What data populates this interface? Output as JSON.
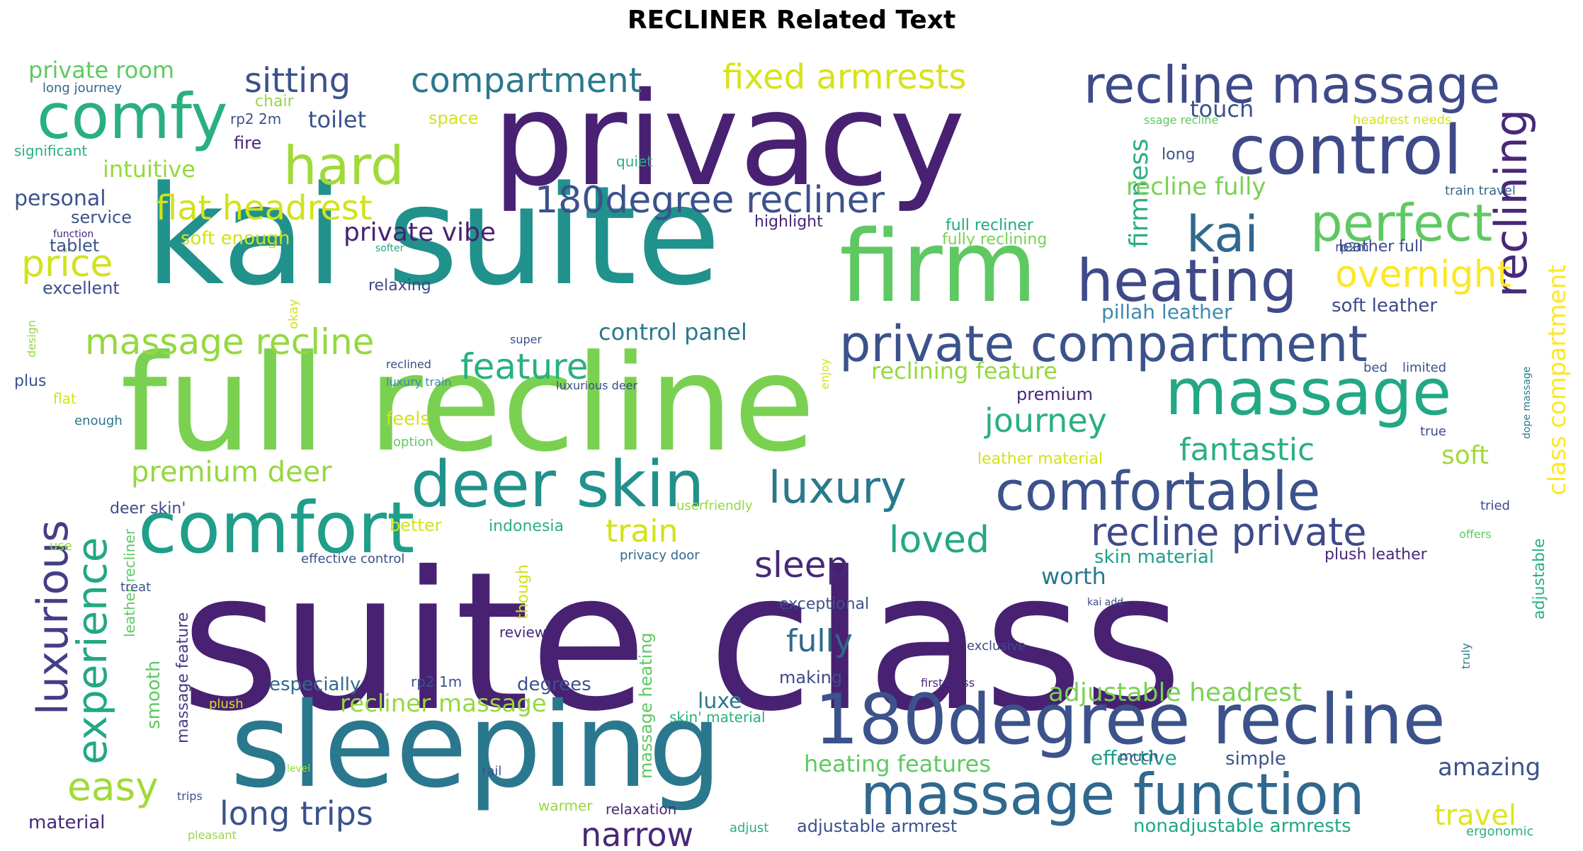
{
  "title": "RECLINER Related Text",
  "words": [
    {
      "text": "suite class",
      "color": "#482173"
    },
    {
      "text": "full recline",
      "color": "#7AD151"
    },
    {
      "text": "kai suite",
      "color": "#21918C"
    },
    {
      "text": "privacy",
      "color": "#482173"
    },
    {
      "text": "sleeping",
      "color": "#2A788E"
    },
    {
      "text": "firm",
      "color": "#5EC962"
    },
    {
      "text": "180degree recline",
      "color": "#3B528B"
    },
    {
      "text": "massage function",
      "color": "#31688E"
    },
    {
      "text": "comfort",
      "color": "#1F9E89"
    },
    {
      "text": "massage",
      "color": "#22A884"
    },
    {
      "text": "control",
      "color": "#3E4A89"
    },
    {
      "text": "private compartment",
      "color": "#3B528B"
    },
    {
      "text": "recline massage",
      "color": "#3E4A89"
    },
    {
      "text": "deer skin",
      "color": "#21918C"
    },
    {
      "text": "comfortable",
      "color": "#3B528B"
    },
    {
      "text": "comfy",
      "color": "#2AB07F"
    },
    {
      "text": "reclining",
      "color": "#482878"
    },
    {
      "text": "heating",
      "color": "#3E4A89"
    },
    {
      "text": "perfect",
      "color": "#5EC962"
    },
    {
      "text": "luxurious",
      "color": "#433E85"
    },
    {
      "text": "experience",
      "color": "#22A884"
    },
    {
      "text": "hard",
      "color": "#A0DA39"
    },
    {
      "text": "recline private",
      "color": "#3E4A89"
    },
    {
      "text": "luxury",
      "color": "#2A788E"
    },
    {
      "text": "180degree recliner",
      "color": "#3B528B"
    },
    {
      "text": "kai",
      "color": "#31688E"
    },
    {
      "text": "easy",
      "color": "#A0DA39"
    },
    {
      "text": "long trips",
      "color": "#3B528B"
    },
    {
      "text": "sleep",
      "color": "#482878"
    },
    {
      "text": "compartment",
      "color": "#2A788E"
    },
    {
      "text": "fixed armrests",
      "color": "#D8E219"
    },
    {
      "text": "sitting",
      "color": "#3B528B"
    },
    {
      "text": "massage recline",
      "color": "#95D840"
    },
    {
      "text": "flat headrest",
      "color": "#D2E21B"
    },
    {
      "text": "price",
      "color": "#D2E21B"
    },
    {
      "text": "overnight",
      "color": "#FDE725"
    },
    {
      "text": "feature",
      "color": "#2AB07F"
    },
    {
      "text": "journey",
      "color": "#2AB07F"
    },
    {
      "text": "fantastic",
      "color": "#2AB07F"
    },
    {
      "text": "loved",
      "color": "#22A884"
    },
    {
      "text": "train",
      "color": "#D2E21B"
    },
    {
      "text": "narrow",
      "color": "#482878"
    },
    {
      "text": "fully",
      "color": "#31688E"
    },
    {
      "text": "premium deer",
      "color": "#95D840"
    },
    {
      "text": "travel",
      "color": "#E1E51C"
    },
    {
      "text": "adjustable headrest",
      "color": "#7AD151"
    },
    {
      "text": "class compartment",
      "color": "#FDE725"
    },
    {
      "text": "firmness",
      "color": "#2AB07F"
    },
    {
      "text": "recline fully",
      "color": "#7AD151"
    },
    {
      "text": "private vibe",
      "color": "#482173"
    },
    {
      "text": "soft",
      "color": "#A0DA39"
    },
    {
      "text": "amazing",
      "color": "#3B528B"
    },
    {
      "text": "worth",
      "color": "#2A788E"
    },
    {
      "text": "recliner massage",
      "color": "#95D840"
    },
    {
      "text": "private room",
      "color": "#5EC962"
    },
    {
      "text": "control panel",
      "color": "#2A788E"
    },
    {
      "text": "heating features",
      "color": "#5EC962"
    },
    {
      "text": "reclining feature",
      "color": "#95D840"
    },
    {
      "text": "toilet",
      "color": "#3B528B"
    },
    {
      "text": "touch",
      "color": "#3B528B"
    },
    {
      "text": "intuitive",
      "color": "#95D840"
    },
    {
      "text": "personal",
      "color": "#3B528B"
    },
    {
      "text": "pillah leather",
      "color": "#3E8AAF"
    },
    {
      "text": "soft leather",
      "color": "#3E4A89"
    },
    {
      "text": "soft enough",
      "color": "#D2E21B"
    },
    {
      "text": "effective",
      "color": "#1F9E89"
    },
    {
      "text": "skin material",
      "color": "#1F9E89"
    },
    {
      "text": "luxe",
      "color": "#2A788E"
    },
    {
      "text": "especially",
      "color": "#31688E"
    },
    {
      "text": "smooth",
      "color": "#5EC962"
    },
    {
      "text": "nonadjustable armrests",
      "color": "#22A884"
    },
    {
      "text": "adjustable armrest",
      "color": "#3B528B"
    },
    {
      "text": "leather full",
      "color": "#3E4A89"
    },
    {
      "text": "plush leather",
      "color": "#482878"
    },
    {
      "text": "premium",
      "color": "#482878"
    },
    {
      "text": "simple",
      "color": "#3B528B"
    },
    {
      "text": "material",
      "color": "#482878"
    },
    {
      "text": "massage heating",
      "color": "#5EC962"
    },
    {
      "text": "massage feature",
      "color": "#433E85"
    },
    {
      "text": "adjustable",
      "color": "#2AB07F"
    },
    {
      "text": "exceptional",
      "color": "#3B528B"
    },
    {
      "text": "full recliner",
      "color": "#22A884"
    },
    {
      "text": "fully reclining",
      "color": "#7AD151"
    },
    {
      "text": "leather material",
      "color": "#D2E21B"
    },
    {
      "text": "making",
      "color": "#3E4A89"
    },
    {
      "text": "degrees",
      "color": "#3B528B"
    },
    {
      "text": "fire",
      "color": "#482878"
    },
    {
      "text": "service",
      "color": "#3B528B"
    },
    {
      "text": "tablet",
      "color": "#3B528B"
    },
    {
      "text": "excellent",
      "color": "#3B528B"
    },
    {
      "text": "plus",
      "color": "#3B528B"
    },
    {
      "text": "feels",
      "color": "#D2E21B"
    },
    {
      "text": "better",
      "color": "#D2E21B"
    },
    {
      "text": "indonesia",
      "color": "#2AB07F"
    },
    {
      "text": "highlight",
      "color": "#482878"
    },
    {
      "text": "relaxing",
      "color": "#3E4A89"
    },
    {
      "text": "space",
      "color": "#D2E21B"
    },
    {
      "text": "chair",
      "color": "#95D840"
    },
    {
      "text": "rp2 2m",
      "color": "#3B528B"
    },
    {
      "text": "long",
      "color": "#3B528B"
    },
    {
      "text": "significant",
      "color": "#2AB07F"
    },
    {
      "text": "long journey",
      "color": "#31688E"
    },
    {
      "text": "headrest needs",
      "color": "#D2E21B"
    },
    {
      "text": "ssage recline",
      "color": "#5EC962"
    },
    {
      "text": "deer skin'",
      "color": "#3E4A89"
    },
    {
      "text": "leather recliner",
      "color": "#5EC962"
    },
    {
      "text": "though",
      "color": "#D2E21B"
    },
    {
      "text": "review",
      "color": "#482878"
    },
    {
      "text": "rp2 1m",
      "color": "#3B528B"
    },
    {
      "text": "relaxation",
      "color": "#482878"
    },
    {
      "text": "warmer",
      "color": "#95D840"
    },
    {
      "text": "skin' material",
      "color": "#2AB07F"
    },
    {
      "text": "option",
      "color": "#5EC962"
    },
    {
      "text": "flat",
      "color": "#D2E21B"
    },
    {
      "text": "enough",
      "color": "#2A788E"
    },
    {
      "text": "plush",
      "color": "#D2E21B"
    },
    {
      "text": "treat",
      "color": "#3B528B"
    },
    {
      "text": "use",
      "color": "#95D840"
    },
    {
      "text": "effective control",
      "color": "#3B528B"
    },
    {
      "text": "privacy door",
      "color": "#31688E"
    },
    {
      "text": "userfriendly",
      "color": "#95D840"
    },
    {
      "text": "luxurious deer",
      "color": "#3E4A89"
    },
    {
      "text": "luxury train",
      "color": "#3E8AAF"
    },
    {
      "text": "reclined",
      "color": "#3E4A89"
    },
    {
      "text": "super",
      "color": "#3B528B"
    },
    {
      "text": "okay",
      "color": "#D2E21B"
    },
    {
      "text": "design",
      "color": "#95D840"
    },
    {
      "text": "function",
      "color": "#482878"
    },
    {
      "text": "softer",
      "color": "#22A884"
    },
    {
      "text": "quiet",
      "color": "#2AB07F"
    },
    {
      "text": "rp2m",
      "color": "#3B528B"
    },
    {
      "text": "train travel",
      "color": "#31688E"
    },
    {
      "text": "bed",
      "color": "#3B528B"
    },
    {
      "text": "limited",
      "color": "#3B528B"
    },
    {
      "text": "enjoy",
      "color": "#D2E21B"
    },
    {
      "text": "dope massage",
      "color": "#2A788E"
    },
    {
      "text": "true",
      "color": "#3E4A89"
    },
    {
      "text": "tried",
      "color": "#3E4A89"
    },
    {
      "text": "offers",
      "color": "#5EC962"
    },
    {
      "text": "kai add",
      "color": "#3E4A89"
    },
    {
      "text": "truly",
      "color": "#2A788E"
    },
    {
      "text": "exclusive",
      "color": "#3E4A89"
    },
    {
      "text": "first class",
      "color": "#482878"
    },
    {
      "text": "much",
      "color": "#3B528B"
    },
    {
      "text": "ergonomic",
      "color": "#2AB07F"
    },
    {
      "text": "adjust",
      "color": "#2AB07F"
    },
    {
      "text": "rail",
      "color": "#3B528B"
    },
    {
      "text": "level",
      "color": "#95D840"
    },
    {
      "text": "trips",
      "color": "#3B528B"
    },
    {
      "text": "pleasant",
      "color": "#95D840"
    }
  ]
}
